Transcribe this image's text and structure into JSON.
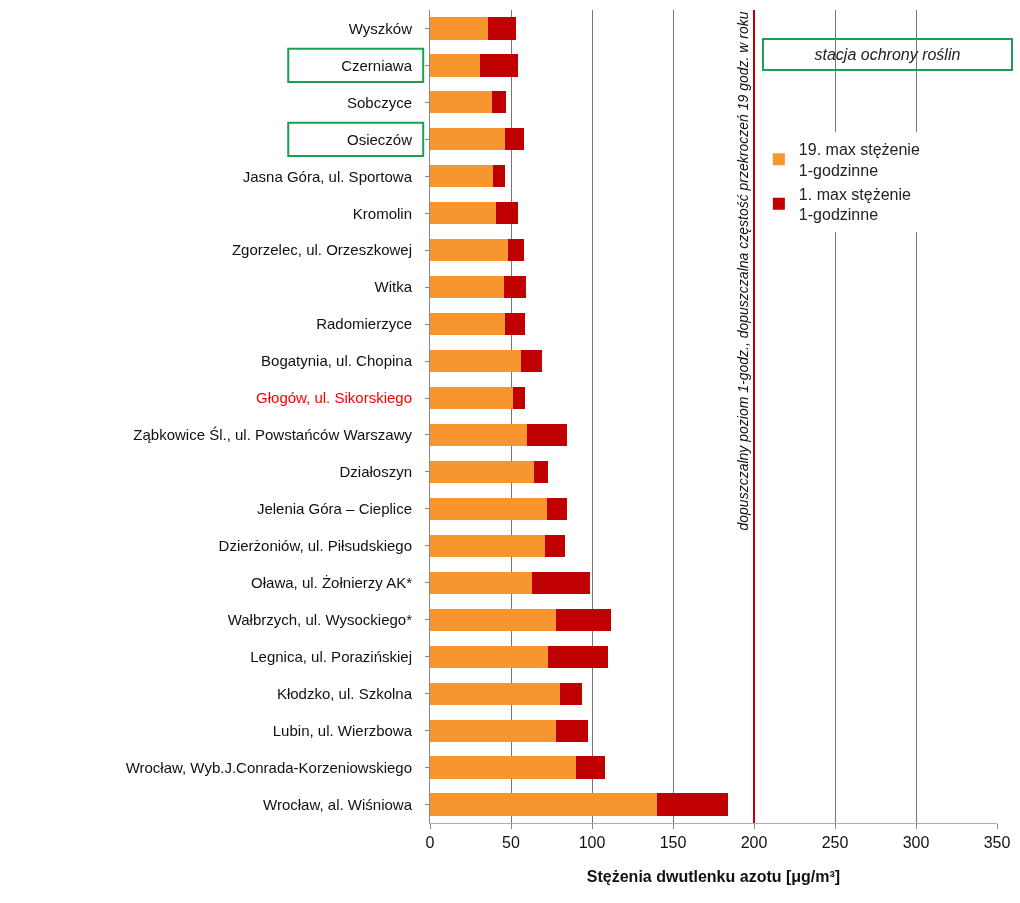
{
  "chart_data": {
    "type": "bar",
    "orientation": "horizontal",
    "stacked": true,
    "categories": [
      "Wyszków",
      "Czerniawa",
      "Sobczyce",
      "Osieczów",
      "Jasna Góra, ul. Sportowa",
      "Kromolin",
      "Zgorzelec, ul. Orzeszkowej",
      "Witka",
      "Radomierzyce",
      "Bogatynia, ul. Chopina",
      "Głogów, ul. Sikorskiego",
      "Ząbkowice Śl., ul. Powstańców Warszawy",
      "Działoszyn",
      "Jelenia Góra – Cieplice",
      "Dzierżoniów, ul. Piłsudskiego",
      "Oława, ul. Żołnierzy AK*",
      "Wałbrzych, ul. Wysockiego*",
      "Legnica, ul. Porazińskiej",
      "Kłodzko, ul. Szkolna",
      "Lubin, ul. Wierzbowa",
      "Wrocław, Wyb.J.Conrada-Korzeniowskiego",
      "Wrocław, al. Wiśniowa"
    ],
    "series": [
      {
        "name": "19. max stężenie 1-godzinne",
        "color": "#f7962e",
        "values": [
          36,
          31,
          38,
          46,
          39,
          41,
          48,
          45.5,
          46,
          56,
          51,
          60,
          64,
          72,
          71,
          63,
          78,
          73,
          80,
          78,
          90,
          140
        ]
      },
      {
        "name": "1. max stężenie 1-godzinne",
        "color": "#c00000",
        "values": [
          17,
          23.5,
          9,
          12,
          7,
          13.5,
          10,
          13.5,
          12.5,
          13,
          7.5,
          24.5,
          9,
          12.5,
          12.5,
          35.5,
          33.5,
          37,
          14,
          19.5,
          18,
          44
        ]
      }
    ],
    "xlabel": "Stężenia dwutlenku azotu [μg/m³]",
    "xlim": [
      0,
      350
    ],
    "xticks": [
      0,
      50,
      100,
      150,
      200,
      250,
      300,
      350
    ],
    "grid": "x",
    "legend": "right",
    "ref_lines": [
      {
        "axis": "x",
        "value": 200,
        "label": "dopuszczalny poziom 1-godz., dopuszczalna częstość przekroczeń 19 godz. w roku",
        "color": "#c00000"
      }
    ],
    "annotations": [
      "stacja ochrony roślin"
    ]
  }
}
